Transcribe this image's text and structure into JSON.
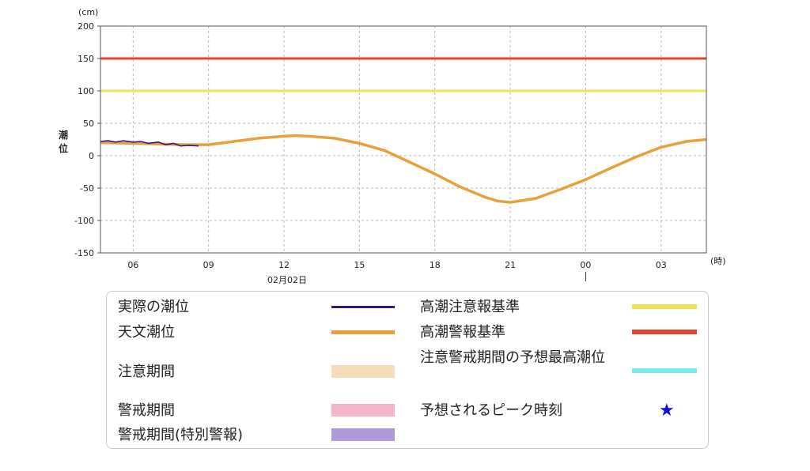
{
  "chart_data": {
    "type": "line",
    "y_unit": "(cm)",
    "ylabel": "潮\n位",
    "x_unit": "(時)",
    "date_label": "02月02日",
    "ylim": [
      -150,
      200
    ],
    "yticks": [
      200,
      150,
      100,
      50,
      0,
      -50,
      -100,
      -150
    ],
    "xlim_hours": [
      4.7,
      28.8
    ],
    "xticks": [
      {
        "hour": 6,
        "label": "06"
      },
      {
        "hour": 9,
        "label": "09"
      },
      {
        "hour": 12,
        "label": "12"
      },
      {
        "hour": 15,
        "label": "15"
      },
      {
        "hour": 18,
        "label": "18"
      },
      {
        "hour": 21,
        "label": "21"
      },
      {
        "hour": 24,
        "label": "00"
      },
      {
        "hour": 27,
        "label": "03"
      }
    ],
    "grid": true,
    "thresholds": [
      {
        "name": "高潮警報基準",
        "value": 150,
        "color": "#e0442e"
      },
      {
        "name": "高潮注意報基準",
        "value": 100,
        "color": "#ede35a"
      }
    ],
    "series": [
      {
        "name": "天文潮位",
        "color": "#eaa03a",
        "points": [
          [
            4.7,
            20
          ],
          [
            6,
            19
          ],
          [
            7,
            18
          ],
          [
            8,
            17
          ],
          [
            9,
            17
          ],
          [
            10,
            22
          ],
          [
            11,
            27
          ],
          [
            12,
            30
          ],
          [
            12.5,
            31
          ],
          [
            13,
            30
          ],
          [
            14,
            27
          ],
          [
            15,
            19
          ],
          [
            16,
            8
          ],
          [
            17,
            -10
          ],
          [
            18,
            -28
          ],
          [
            19,
            -48
          ],
          [
            20,
            -64
          ],
          [
            20.5,
            -70
          ],
          [
            21,
            -72
          ],
          [
            22,
            -66
          ],
          [
            23,
            -52
          ],
          [
            24,
            -37
          ],
          [
            25,
            -19
          ],
          [
            26,
            -2
          ],
          [
            27,
            13
          ],
          [
            28,
            22
          ],
          [
            28.8,
            25
          ]
        ]
      },
      {
        "name": "実際の潮位",
        "color": "#2a1a8a",
        "points": [
          [
            4.7,
            22
          ],
          [
            5,
            23
          ],
          [
            5.3,
            21
          ],
          [
            5.6,
            23
          ],
          [
            6,
            21
          ],
          [
            6.3,
            22
          ],
          [
            6.6,
            19
          ],
          [
            7,
            21
          ],
          [
            7.3,
            17
          ],
          [
            7.6,
            19
          ],
          [
            7.9,
            15
          ],
          [
            8.2,
            16
          ],
          [
            8.6,
            15
          ]
        ]
      }
    ]
  },
  "legend": {
    "items": [
      {
        "label": "実際の潮位",
        "kind": "line",
        "color": "#2a1a8a"
      },
      {
        "label": "天文潮位",
        "kind": "line",
        "color": "#eaa03a"
      },
      {
        "label": "注意期間",
        "kind": "band",
        "color": "#f8dbb8"
      },
      {
        "label": "警戒期間",
        "kind": "band",
        "color": "#f4b6cc"
      },
      {
        "label": "警戒期間(特別警報)",
        "kind": "band",
        "color": "#b09ad8"
      },
      {
        "label": "高潮注意報基準",
        "kind": "line",
        "color": "#ede35a"
      },
      {
        "label": "高潮警報基準",
        "kind": "line",
        "color": "#e0442e"
      },
      {
        "label": "注意警戒期間の予想最高潮位",
        "kind": "line",
        "color": "#7fe6f2"
      },
      {
        "label": "予想されるピーク時刻",
        "kind": "star",
        "color": "#1010d0",
        "icon": "star-icon"
      }
    ]
  }
}
